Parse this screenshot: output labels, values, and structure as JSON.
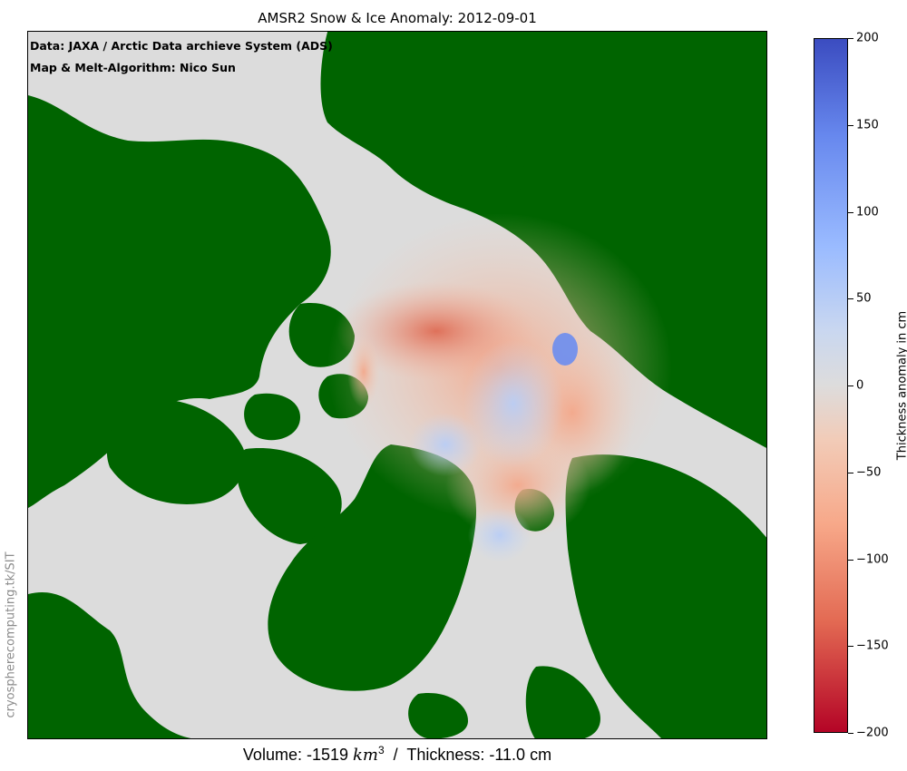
{
  "title": "AMSR2 Snow & Ice Anomaly: 2012-09-01",
  "credits": {
    "line1": "Data: JAXA / Arctic Data archieve System (ADS)",
    "line2": "Map & Melt-Algorithm: Nico Sun"
  },
  "watermark": "cryospherecomputing.tk/SIT",
  "footer": {
    "volume_prefix": "Volume: -1519 ",
    "volume_unit": "km",
    "volume_exp": "3",
    "thickness": "  /  Thickness: -11.0 cm"
  },
  "colorbar": {
    "label": "Thickness anomaly in cm",
    "ticks": [
      "200",
      "150",
      "100",
      "50",
      "0",
      "−50",
      "−100",
      "−150",
      "−200"
    ],
    "range": [
      -200,
      200
    ],
    "colormap": "coolwarm",
    "max_color": "#3b4cc0",
    "min_color": "#b40426"
  },
  "colors": {
    "land": "#006400",
    "no_data": "#dcdcdc"
  }
}
